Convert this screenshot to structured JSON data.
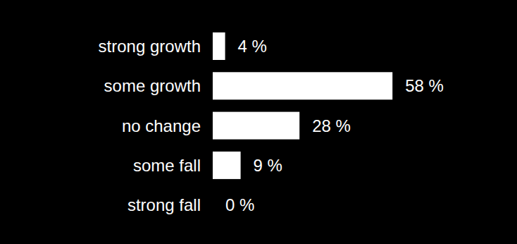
{
  "chart_data": {
    "type": "bar",
    "orientation": "horizontal",
    "categories": [
      "strong growth",
      "some growth",
      "no change",
      "some fall",
      "strong fall"
    ],
    "values": [
      4,
      58,
      28,
      9,
      0
    ],
    "value_labels": [
      "4 %",
      "58 %",
      "28 %",
      "9 %",
      "0 %"
    ],
    "color": "#ffffff",
    "data_labels": true,
    "tick_labels": "y",
    "grid": false
  }
}
